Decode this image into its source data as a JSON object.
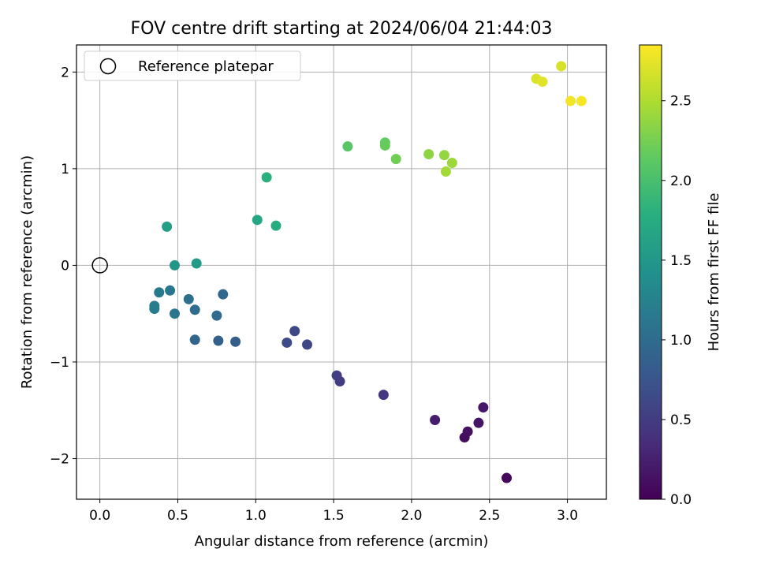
{
  "chart_data": {
    "type": "scatter",
    "title": "FOV centre drift starting at 2024/06/04 21:44:03",
    "xlabel": "Angular distance from reference (arcmin)",
    "ylabel": "Rotation from reference (arcmin)",
    "xlim": [
      -0.15,
      3.25
    ],
    "ylim": [
      -2.42,
      2.28
    ],
    "xticks": [
      "0.0",
      "0.5",
      "1.0",
      "1.5",
      "2.0",
      "2.5",
      "3.0"
    ],
    "xtick_values": [
      0,
      0.5,
      1.0,
      1.5,
      2.0,
      2.5,
      3.0
    ],
    "yticks": [
      "−2",
      "−1",
      "0",
      "1",
      "2"
    ],
    "ytick_values": [
      -2,
      -1,
      0,
      1,
      2
    ],
    "grid": true,
    "legend": {
      "placement": "top-left",
      "entries": [
        "Reference platepar"
      ]
    },
    "reference_point": {
      "x": 0.0,
      "y": 0.0
    },
    "colorbar": {
      "label": "Hours from first FF file",
      "colormap": "viridis",
      "range": [
        0,
        2.85
      ],
      "ticks": [
        "0.0",
        "0.5",
        "1.0",
        "1.5",
        "2.0",
        "2.5"
      ],
      "tick_values": [
        0,
        0.5,
        1.0,
        1.5,
        2.0,
        2.5
      ]
    },
    "points": [
      {
        "x": 2.61,
        "y": -2.2,
        "hours": 0.05
      },
      {
        "x": 2.34,
        "y": -1.78,
        "hours": 0.1
      },
      {
        "x": 2.36,
        "y": -1.72,
        "hours": 0.12
      },
      {
        "x": 2.43,
        "y": -1.63,
        "hours": 0.15
      },
      {
        "x": 2.46,
        "y": -1.47,
        "hours": 0.18
      },
      {
        "x": 2.15,
        "y": -1.6,
        "hours": 0.22
      },
      {
        "x": 1.82,
        "y": -1.34,
        "hours": 0.45
      },
      {
        "x": 1.54,
        "y": -1.2,
        "hours": 0.5
      },
      {
        "x": 1.52,
        "y": -1.14,
        "hours": 0.52
      },
      {
        "x": 1.33,
        "y": -0.82,
        "hours": 0.6
      },
      {
        "x": 1.25,
        "y": -0.68,
        "hours": 0.62
      },
      {
        "x": 1.2,
        "y": -0.8,
        "hours": 0.65
      },
      {
        "x": 0.87,
        "y": -0.79,
        "hours": 0.85
      },
      {
        "x": 0.76,
        "y": -0.78,
        "hours": 0.88
      },
      {
        "x": 0.61,
        "y": -0.77,
        "hours": 0.92
      },
      {
        "x": 0.79,
        "y": -0.3,
        "hours": 0.95
      },
      {
        "x": 0.75,
        "y": -0.52,
        "hours": 0.98
      },
      {
        "x": 0.61,
        "y": -0.46,
        "hours": 1.0
      },
      {
        "x": 0.57,
        "y": -0.35,
        "hours": 1.05
      },
      {
        "x": 0.48,
        "y": -0.5,
        "hours": 1.1
      },
      {
        "x": 0.45,
        "y": -0.26,
        "hours": 1.12
      },
      {
        "x": 0.38,
        "y": -0.28,
        "hours": 1.15
      },
      {
        "x": 0.35,
        "y": -0.42,
        "hours": 1.18
      },
      {
        "x": 0.35,
        "y": -0.45,
        "hours": 1.2
      },
      {
        "x": 0.48,
        "y": 0.0,
        "hours": 1.5
      },
      {
        "x": 0.62,
        "y": 0.02,
        "hours": 1.55
      },
      {
        "x": 0.43,
        "y": 0.4,
        "hours": 1.6
      },
      {
        "x": 1.01,
        "y": 0.47,
        "hours": 1.7
      },
      {
        "x": 1.13,
        "y": 0.41,
        "hours": 1.75
      },
      {
        "x": 1.07,
        "y": 0.91,
        "hours": 1.8
      },
      {
        "x": 1.59,
        "y": 1.23,
        "hours": 2.1
      },
      {
        "x": 1.83,
        "y": 1.27,
        "hours": 2.15
      },
      {
        "x": 1.83,
        "y": 1.24,
        "hours": 2.18
      },
      {
        "x": 1.9,
        "y": 1.1,
        "hours": 2.22
      },
      {
        "x": 2.11,
        "y": 1.15,
        "hours": 2.35
      },
      {
        "x": 2.21,
        "y": 1.14,
        "hours": 2.38
      },
      {
        "x": 2.26,
        "y": 1.06,
        "hours": 2.42
      },
      {
        "x": 2.22,
        "y": 0.97,
        "hours": 2.45
      },
      {
        "x": 2.8,
        "y": 1.93,
        "hours": 2.7
      },
      {
        "x": 2.84,
        "y": 1.9,
        "hours": 2.72
      },
      {
        "x": 2.96,
        "y": 2.06,
        "hours": 2.68
      },
      {
        "x": 3.02,
        "y": 1.7,
        "hours": 2.8
      },
      {
        "x": 3.09,
        "y": 1.7,
        "hours": 2.82
      }
    ]
  }
}
